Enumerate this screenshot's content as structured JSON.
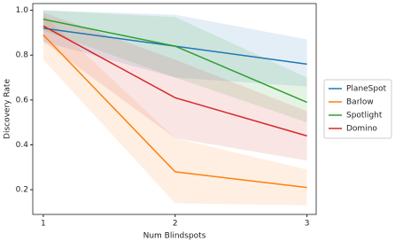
{
  "chart_data": {
    "type": "line",
    "x": [
      1,
      2,
      3
    ],
    "xlabel": "Num Blindspots",
    "ylabel": "Discovery Rate",
    "xlim": [
      0.92,
      3.07
    ],
    "xticks": [
      1,
      2,
      3
    ],
    "ylim": [
      0.09,
      1.03
    ],
    "yticks": [
      0.2,
      0.4,
      0.6,
      0.8,
      {
        "value": 1.0,
        "label": "1.0"
      }
    ],
    "legend": "right",
    "series": [
      {
        "name": "PlaneSpot",
        "color": "#1f77b4",
        "values": [
          0.92,
          0.84,
          0.76
        ],
        "lower": [
          0.86,
          0.7,
          0.66
        ],
        "upper": [
          1.0,
          0.98,
          0.87
        ]
      },
      {
        "name": "Barlow",
        "color": "#ff7f0e",
        "values": [
          0.89,
          0.28,
          0.21
        ],
        "lower": [
          0.78,
          0.14,
          0.13
        ],
        "upper": [
          0.98,
          0.43,
          0.29
        ]
      },
      {
        "name": "Spotlight",
        "color": "#2ca02c",
        "values": [
          0.96,
          0.84,
          0.59
        ],
        "lower": [
          0.91,
          0.7,
          0.5
        ],
        "upper": [
          1.0,
          0.97,
          0.7
        ]
      },
      {
        "name": "Domino",
        "color": "#d62728",
        "values": [
          0.93,
          0.61,
          0.44
        ],
        "lower": [
          0.86,
          0.43,
          0.33
        ],
        "upper": [
          0.99,
          0.78,
          0.55
        ]
      }
    ]
  }
}
